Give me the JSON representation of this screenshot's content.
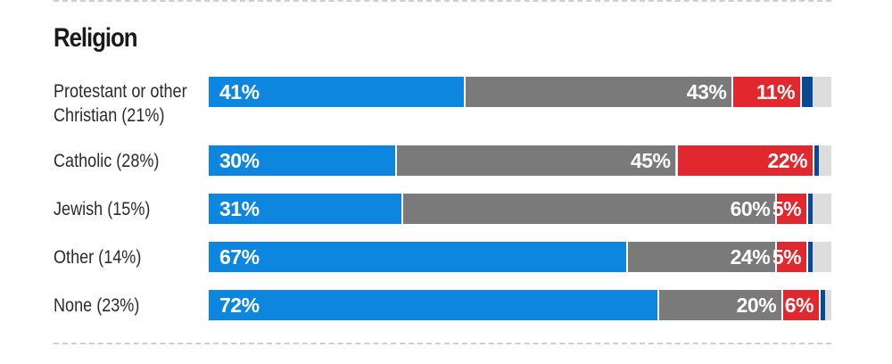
{
  "chart_data": {
    "type": "bar",
    "orientation": "horizontal",
    "stacked": true,
    "title": "Religion",
    "xlim": [
      0,
      100
    ],
    "categories": [
      "Protestant or other Christian (21%)",
      "Catholic (28%)",
      "Jewish (15%)",
      "Other (14%)",
      "None (23%)"
    ],
    "series": [
      {
        "color": "#0d86e0",
        "values": [
          41,
          30,
          31,
          67,
          72
        ],
        "labels": [
          "41%",
          "30%",
          "31%",
          "67%",
          "72%"
        ]
      },
      {
        "color": "#7a7a7a",
        "values": [
          43,
          45,
          60,
          24,
          20
        ],
        "labels": [
          "43%",
          "45%",
          "60%",
          "24%",
          "20%"
        ]
      },
      {
        "color": "#e0282e",
        "values": [
          11,
          22,
          5,
          5,
          6
        ],
        "labels": [
          "11%",
          "22%",
          "5%",
          "5%",
          "6%"
        ]
      },
      {
        "color": "#0a4a94",
        "values": [
          2,
          1,
          1,
          1,
          1
        ],
        "labels": [
          "",
          "",
          "",
          "",
          ""
        ]
      }
    ],
    "remainder_color": "#dddddd",
    "grid": false,
    "legend": "none"
  }
}
